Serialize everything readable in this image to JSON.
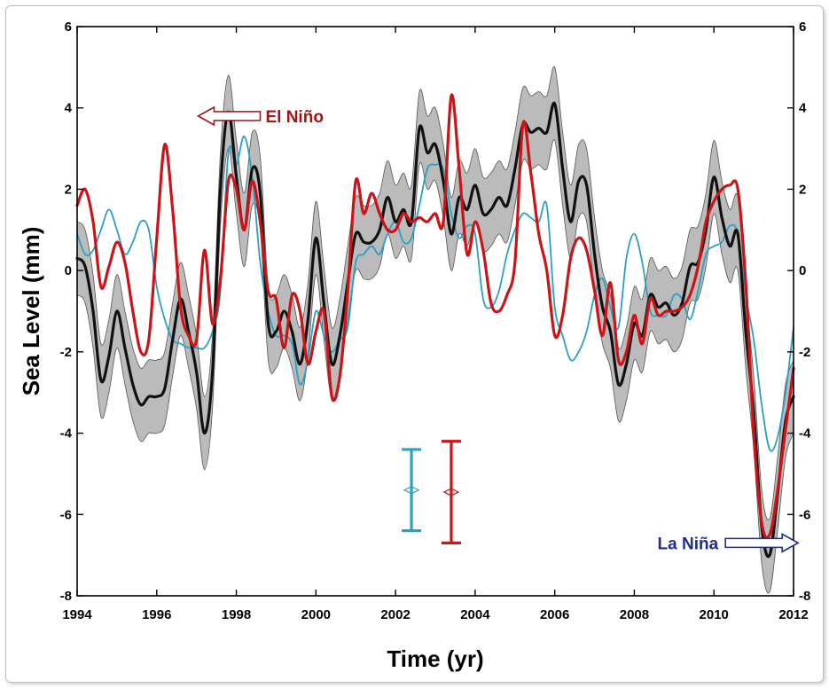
{
  "chart_data": {
    "type": "line",
    "xlabel": "Time (yr)",
    "ylabel": "Sea Level (mm)",
    "xlim": [
      1994,
      2012
    ],
    "ylim": [
      -8,
      6
    ],
    "x_ticks": [
      "1994",
      "1996",
      "1998",
      "2000",
      "2002",
      "2004",
      "2006",
      "2008",
      "2010",
      "2012"
    ],
    "y_ticks": [
      "-8",
      "-6",
      "-4",
      "-2",
      "0",
      "2",
      "4",
      "6"
    ],
    "grid": false,
    "colors": {
      "black": "#111111",
      "band": "#b7b7b7",
      "cyan": "#2aa0c4",
      "red": "#cc1418",
      "el_nino_text": "#a31414",
      "la_nina_text": "#1c2e8e"
    },
    "annotations": [
      {
        "text": "El Niño",
        "x": 1998.6,
        "y": 3.8,
        "arrow": "left"
      },
      {
        "text": "La Niña",
        "x": 2010.6,
        "y": -6.7,
        "arrow": "right"
      }
    ],
    "error_bars": [
      {
        "x": 2002.4,
        "center": -5.4,
        "low": -6.4,
        "high": -4.4,
        "color": "cyan"
      },
      {
        "x": 2003.4,
        "center": -5.45,
        "low": -6.7,
        "high": -4.2,
        "color": "red"
      }
    ],
    "series": [
      {
        "color": "black",
        "band_halfwidth": 0.9,
        "points": [
          [
            1994.0,
            0.3
          ],
          [
            1994.2,
            0.1
          ],
          [
            1994.4,
            -1.0
          ],
          [
            1994.6,
            -2.7
          ],
          [
            1994.8,
            -2.1
          ],
          [
            1995.0,
            -1.0
          ],
          [
            1995.2,
            -1.9
          ],
          [
            1995.4,
            -2.8
          ],
          [
            1995.6,
            -3.3
          ],
          [
            1995.8,
            -3.1
          ],
          [
            1996.0,
            -3.1
          ],
          [
            1996.2,
            -2.9
          ],
          [
            1996.4,
            -1.7
          ],
          [
            1996.6,
            -0.7
          ],
          [
            1996.8,
            -1.5
          ],
          [
            1997.0,
            -2.5
          ],
          [
            1997.2,
            -4.0
          ],
          [
            1997.4,
            -2.5
          ],
          [
            1997.6,
            2.0
          ],
          [
            1997.8,
            3.9
          ],
          [
            1998.0,
            2.3
          ],
          [
            1998.2,
            1.0
          ],
          [
            1998.4,
            2.5
          ],
          [
            1998.6,
            1.9
          ],
          [
            1998.8,
            -1.3
          ],
          [
            1999.0,
            -1.5
          ],
          [
            1999.2,
            -1.0
          ],
          [
            1999.4,
            -1.5
          ],
          [
            1999.6,
            -2.3
          ],
          [
            1999.8,
            -1.2
          ],
          [
            2000.0,
            0.8
          ],
          [
            2000.2,
            -0.8
          ],
          [
            2000.4,
            -2.3
          ],
          [
            2000.6,
            -1.6
          ],
          [
            2000.8,
            -0.3
          ],
          [
            2001.0,
            0.9
          ],
          [
            2001.2,
            0.7
          ],
          [
            2001.4,
            0.7
          ],
          [
            2001.6,
            1.0
          ],
          [
            2001.8,
            1.8
          ],
          [
            2002.0,
            1.2
          ],
          [
            2002.2,
            1.5
          ],
          [
            2002.4,
            1.2
          ],
          [
            2002.6,
            3.5
          ],
          [
            2002.8,
            2.9
          ],
          [
            2003.0,
            3.1
          ],
          [
            2003.2,
            2.2
          ],
          [
            2003.4,
            0.9
          ],
          [
            2003.6,
            1.8
          ],
          [
            2003.8,
            1.5
          ],
          [
            2004.0,
            2.1
          ],
          [
            2004.2,
            1.4
          ],
          [
            2004.4,
            1.5
          ],
          [
            2004.6,
            1.8
          ],
          [
            2004.8,
            1.6
          ],
          [
            2005.0,
            2.5
          ],
          [
            2005.2,
            3.6
          ],
          [
            2005.4,
            3.4
          ],
          [
            2005.6,
            3.5
          ],
          [
            2005.8,
            3.4
          ],
          [
            2006.0,
            4.1
          ],
          [
            2006.2,
            2.5
          ],
          [
            2006.4,
            1.2
          ],
          [
            2006.6,
            2.2
          ],
          [
            2006.8,
            2.1
          ],
          [
            2007.0,
            0.4
          ],
          [
            2007.2,
            -0.9
          ],
          [
            2007.4,
            -1.5
          ],
          [
            2007.6,
            -2.8
          ],
          [
            2007.8,
            -2.3
          ],
          [
            2008.0,
            -1.3
          ],
          [
            2008.2,
            -1.6
          ],
          [
            2008.4,
            -0.6
          ],
          [
            2008.6,
            -0.9
          ],
          [
            2008.8,
            -0.8
          ],
          [
            2009.0,
            -1.1
          ],
          [
            2009.2,
            -0.8
          ],
          [
            2009.4,
            0.1
          ],
          [
            2009.6,
            0.2
          ],
          [
            2009.8,
            1.0
          ],
          [
            2010.0,
            2.3
          ],
          [
            2010.2,
            1.3
          ],
          [
            2010.4,
            0.6
          ],
          [
            2010.6,
            0.9
          ],
          [
            2010.8,
            -1.5
          ],
          [
            2011.0,
            -3.5
          ],
          [
            2011.2,
            -6.3
          ],
          [
            2011.4,
            -7.0
          ],
          [
            2011.6,
            -5.5
          ],
          [
            2011.8,
            -3.7
          ],
          [
            2012.0,
            -3.1
          ]
        ]
      },
      {
        "color": "cyan",
        "points": [
          [
            1994.0,
            0.9
          ],
          [
            1994.2,
            0.4
          ],
          [
            1994.4,
            0.5
          ],
          [
            1994.6,
            1.0
          ],
          [
            1994.8,
            1.5
          ],
          [
            1995.0,
            1.0
          ],
          [
            1995.2,
            0.4
          ],
          [
            1995.4,
            0.7
          ],
          [
            1995.6,
            1.2
          ],
          [
            1995.8,
            1.0
          ],
          [
            1996.0,
            -0.4
          ],
          [
            1996.2,
            -1.2
          ],
          [
            1996.4,
            -1.7
          ],
          [
            1996.6,
            -1.8
          ],
          [
            1996.8,
            -1.9
          ],
          [
            1997.0,
            -1.9
          ],
          [
            1997.2,
            -1.9
          ],
          [
            1997.4,
            -1.5
          ],
          [
            1997.6,
            -0.5
          ],
          [
            1997.8,
            2.9
          ],
          [
            1998.0,
            2.6
          ],
          [
            1998.2,
            3.3
          ],
          [
            1998.4,
            2.3
          ],
          [
            1998.6,
            0.2
          ],
          [
            1998.8,
            -1.0
          ],
          [
            1999.0,
            -1.6
          ],
          [
            1999.2,
            -1.6
          ],
          [
            1999.4,
            -1.8
          ],
          [
            1999.6,
            -2.8
          ],
          [
            1999.8,
            -2.2
          ],
          [
            2000.0,
            -1.0
          ],
          [
            2000.2,
            -1.6
          ],
          [
            2000.4,
            -2.0
          ],
          [
            2000.6,
            -1.7
          ],
          [
            2000.8,
            -1.4
          ],
          [
            2001.0,
            0.2
          ],
          [
            2001.2,
            0.4
          ],
          [
            2001.4,
            0.6
          ],
          [
            2001.6,
            0.4
          ],
          [
            2001.8,
            0.9
          ],
          [
            2002.0,
            1.2
          ],
          [
            2002.2,
            0.7
          ],
          [
            2002.4,
            0.8
          ],
          [
            2002.6,
            1.6
          ],
          [
            2002.8,
            2.5
          ],
          [
            2003.0,
            2.6
          ],
          [
            2003.2,
            2.5
          ],
          [
            2003.4,
            1.4
          ],
          [
            2003.6,
            0.8
          ],
          [
            2003.8,
            1.1
          ],
          [
            2004.0,
            0.9
          ],
          [
            2004.2,
            -0.7
          ],
          [
            2004.4,
            -0.9
          ],
          [
            2004.6,
            -0.5
          ],
          [
            2004.8,
            0.4
          ],
          [
            2005.0,
            1.0
          ],
          [
            2005.2,
            1.4
          ],
          [
            2005.4,
            1.3
          ],
          [
            2005.6,
            1.2
          ],
          [
            2005.8,
            1.6
          ],
          [
            2006.0,
            -0.9
          ],
          [
            2006.2,
            -1.6
          ],
          [
            2006.4,
            -2.2
          ],
          [
            2006.6,
            -2.0
          ],
          [
            2006.8,
            -1.5
          ],
          [
            2007.0,
            -0.6
          ],
          [
            2007.2,
            -0.2
          ],
          [
            2007.4,
            -0.9
          ],
          [
            2007.6,
            -1.4
          ],
          [
            2007.8,
            0.3
          ],
          [
            2008.0,
            0.9
          ],
          [
            2008.2,
            0.2
          ],
          [
            2008.4,
            -1.0
          ],
          [
            2008.6,
            -1.1
          ],
          [
            2008.8,
            -1.1
          ],
          [
            2009.0,
            -0.6
          ],
          [
            2009.2,
            -0.7
          ],
          [
            2009.4,
            -1.2
          ],
          [
            2009.6,
            -0.5
          ],
          [
            2009.8,
            0.4
          ],
          [
            2010.0,
            0.6
          ],
          [
            2010.2,
            0.7
          ],
          [
            2010.4,
            1.1
          ],
          [
            2010.6,
            0.9
          ],
          [
            2010.8,
            -0.6
          ],
          [
            2011.0,
            -1.7
          ],
          [
            2011.2,
            -3.3
          ],
          [
            2011.4,
            -4.4
          ],
          [
            2011.6,
            -4.1
          ],
          [
            2011.8,
            -3.0
          ],
          [
            2012.0,
            -1.4
          ]
        ]
      },
      {
        "color": "red",
        "points": [
          [
            1994.0,
            1.6
          ],
          [
            1994.2,
            2.0
          ],
          [
            1994.4,
            1.2
          ],
          [
            1994.6,
            -0.4
          ],
          [
            1994.8,
            0.1
          ],
          [
            1995.0,
            0.7
          ],
          [
            1995.2,
            0.2
          ],
          [
            1995.4,
            -1.0
          ],
          [
            1995.6,
            -2.0
          ],
          [
            1995.8,
            -1.7
          ],
          [
            1996.0,
            0.8
          ],
          [
            1996.2,
            3.1
          ],
          [
            1996.4,
            1.5
          ],
          [
            1996.6,
            -0.9
          ],
          [
            1996.8,
            -1.6
          ],
          [
            1997.0,
            -1.7
          ],
          [
            1997.2,
            0.5
          ],
          [
            1997.4,
            -1.3
          ],
          [
            1997.6,
            -0.2
          ],
          [
            1997.8,
            2.2
          ],
          [
            1998.0,
            2.0
          ],
          [
            1998.2,
            1.0
          ],
          [
            1998.4,
            2.2
          ],
          [
            1998.6,
            1.2
          ],
          [
            1998.8,
            -0.5
          ],
          [
            1999.0,
            -0.7
          ],
          [
            1999.2,
            -1.9
          ],
          [
            1999.4,
            -0.6
          ],
          [
            1999.6,
            -1.0
          ],
          [
            1999.8,
            -2.3
          ],
          [
            2000.0,
            -1.5
          ],
          [
            2000.2,
            -1.0
          ],
          [
            2000.4,
            -3.1
          ],
          [
            2000.6,
            -2.6
          ],
          [
            2000.8,
            -0.5
          ],
          [
            2001.0,
            2.2
          ],
          [
            2001.2,
            1.4
          ],
          [
            2001.4,
            1.9
          ],
          [
            2001.6,
            1.4
          ],
          [
            2001.8,
            1.0
          ],
          [
            2002.0,
            1.0
          ],
          [
            2002.2,
            1.4
          ],
          [
            2002.4,
            1.2
          ],
          [
            2002.6,
            1.3
          ],
          [
            2002.8,
            1.2
          ],
          [
            2003.0,
            1.4
          ],
          [
            2003.2,
            1.2
          ],
          [
            2003.4,
            4.3
          ],
          [
            2003.6,
            2.5
          ],
          [
            2003.8,
            0.4
          ],
          [
            2004.0,
            1.2
          ],
          [
            2004.2,
            0.5
          ],
          [
            2004.4,
            -0.8
          ],
          [
            2004.6,
            -1.0
          ],
          [
            2004.8,
            -0.6
          ],
          [
            2005.0,
            0.2
          ],
          [
            2005.2,
            3.6
          ],
          [
            2005.4,
            2.4
          ],
          [
            2005.6,
            0.9
          ],
          [
            2005.8,
            0.0
          ],
          [
            2006.0,
            -1.6
          ],
          [
            2006.2,
            -1.1
          ],
          [
            2006.4,
            0.3
          ],
          [
            2006.6,
            0.8
          ],
          [
            2006.8,
            0.5
          ],
          [
            2007.0,
            -0.5
          ],
          [
            2007.2,
            -1.6
          ],
          [
            2007.4,
            -0.3
          ],
          [
            2007.6,
            -2.2
          ],
          [
            2007.8,
            -2.0
          ],
          [
            2008.0,
            -1.1
          ],
          [
            2008.2,
            -1.8
          ],
          [
            2008.4,
            -0.7
          ],
          [
            2008.6,
            -1.1
          ],
          [
            2008.8,
            -1.0
          ],
          [
            2009.0,
            -1.0
          ],
          [
            2009.2,
            -0.9
          ],
          [
            2009.4,
            -0.6
          ],
          [
            2009.6,
            0.1
          ],
          [
            2009.8,
            1.2
          ],
          [
            2010.0,
            1.7
          ],
          [
            2010.2,
            2.0
          ],
          [
            2010.4,
            2.1
          ],
          [
            2010.6,
            2.0
          ],
          [
            2010.8,
            -0.3
          ],
          [
            2011.0,
            -4.0
          ],
          [
            2011.2,
            -6.2
          ],
          [
            2011.4,
            -6.5
          ],
          [
            2011.6,
            -5.4
          ],
          [
            2011.8,
            -3.9
          ],
          [
            2012.0,
            -2.4
          ]
        ]
      }
    ]
  }
}
